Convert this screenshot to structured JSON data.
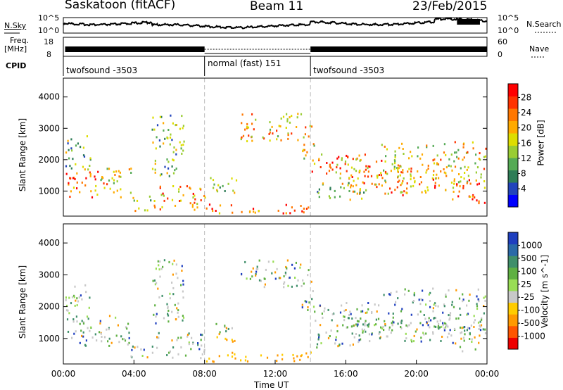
{
  "header": {
    "station": "Saskatoon (fitACF)",
    "beam": "Beam 11",
    "date": "23/Feb/2015"
  },
  "noise_panel": {
    "left_label": "N.Sky",
    "left_ticks": [
      "10^5",
      "10^0"
    ],
    "right_ticks": [
      "10^5",
      "10^0"
    ],
    "right_label": "N.Search"
  },
  "freq_panel": {
    "left_label_1": "Freq.",
    "left_label_2": "[MHz]",
    "left_ticks": [
      "18",
      "8"
    ],
    "right_ticks": [
      "60",
      "0"
    ],
    "right_label": "Nave"
  },
  "cpid": {
    "label": "CPID",
    "segments": [
      {
        "name": "twofsound -3503",
        "start_hour": 0,
        "end_hour": 8
      },
      {
        "name": "normal (fast) 151",
        "start_hour": 8,
        "end_hour": 14
      },
      {
        "name": "twofsound -3503",
        "start_hour": 14,
        "end_hour": 24
      }
    ]
  },
  "chart_data": [
    {
      "type": "heatmap",
      "name": "power",
      "ylabel": "Slant Range [km]",
      "yticks": [
        1000,
        2000,
        3000,
        4000
      ],
      "ylim": [
        200,
        4600
      ],
      "xlim": [
        0,
        24
      ],
      "colorbar": {
        "label": "Power [dB]",
        "ticks": [
          "4",
          "8",
          "12",
          "16",
          "20",
          "24",
          "28"
        ],
        "colors": [
          "#0000ff",
          "#2244bb",
          "#2e7d57",
          "#55aa55",
          "#99cc33",
          "#dddd00",
          "#ffaa00",
          "#ff7700",
          "#ff3300",
          "#ff0000"
        ]
      }
    },
    {
      "type": "heatmap",
      "name": "velocity",
      "ylabel": "Slant Range [km]",
      "yticks": [
        1000,
        2000,
        3000,
        4000
      ],
      "ylim": [
        200,
        4600
      ],
      "xlim": [
        0,
        24
      ],
      "colorbar": {
        "label": "Velocity [m s^-1]",
        "ticks": [
          "1000",
          "500",
          "100",
          "25",
          "-25",
          "-100",
          "-500",
          "-1000"
        ],
        "colors": [
          "#1f3fbf",
          "#2a6aa8",
          "#3f8f6a",
          "#5fb042",
          "#99dd55",
          "#c8c8c8",
          "#ffcc00",
          "#ff9900",
          "#ff5500",
          "#ee0000"
        ]
      }
    }
  ],
  "time_axis": {
    "xlabel": "Time UT",
    "tick_labels": [
      "00:00",
      "04:00",
      "08:00",
      "12:00",
      "16:00",
      "20:00",
      "00:00"
    ]
  }
}
